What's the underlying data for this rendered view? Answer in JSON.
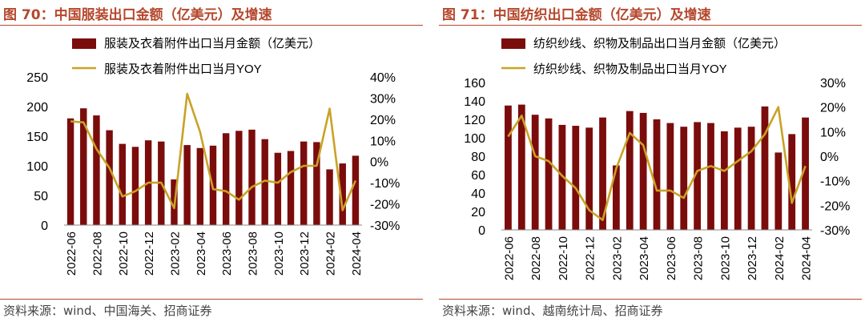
{
  "charts": [
    {
      "title": "图 70：中国服装出口金额（亿美元）及增速",
      "source": "资料来源：wind、中国海关、招商证券",
      "chart_data": {
        "type": "bar",
        "categories": [
          "2022-06",
          "2022-07",
          "2022-08",
          "2022-09",
          "2022-10",
          "2022-11",
          "2022-12",
          "2023-01",
          "2023-02",
          "2023-03",
          "2023-04",
          "2023-05",
          "2023-06",
          "2023-07",
          "2023-08",
          "2023-09",
          "2023-10",
          "2023-11",
          "2023-12",
          "2024-01",
          "2024-02",
          "2024-03",
          "2024-04"
        ],
        "tick_labels": [
          "2022-06",
          "2022-08",
          "2022-10",
          "2022-12",
          "2023-02",
          "2023-04",
          "2023-06",
          "2023-08",
          "2023-10",
          "2023-12",
          "2024-02",
          "2024-04"
        ],
        "series": [
          {
            "name": "服装及衣着附件出口当月金额（亿美元）",
            "type": "bar",
            "axis": "left",
            "color": "#7b0c0c",
            "values": [
              180,
              197,
              185,
              160,
              137,
              132,
              143,
              141,
              77,
              135,
              130,
              134,
              155,
              159,
              161,
              145,
              122,
              125,
              141,
              140,
              94,
              104,
              117
            ]
          },
          {
            "name": "服装及衣着附件出口当月YOY",
            "type": "line",
            "axis": "right",
            "color": "#c9a227",
            "values": [
              19,
              18.5,
              6,
              -3,
              -16.5,
              -14,
              -10,
              -10,
              -22,
              32,
              14,
              -13,
              -14,
              -18,
              -12,
              -9,
              -10,
              -5,
              -2,
              -2,
              25,
              -23,
              -9
            ]
          }
        ],
        "yleft": {
          "min": 0,
          "max": 250,
          "step": 50,
          "ticks": [
            "0",
            "50",
            "100",
            "150",
            "200",
            "250"
          ]
        },
        "yright": {
          "min": -30,
          "max": 40,
          "step": 10,
          "ticks": [
            "-30%",
            "-20%",
            "-10%",
            "0%",
            "10%",
            "20%",
            "30%",
            "40%"
          ]
        },
        "legend": "top"
      }
    },
    {
      "title": "图 71：中国纺织出口金额（亿美元）及增速",
      "source": "资料来源：wind、越南统计局、招商证券",
      "chart_data": {
        "type": "bar",
        "categories": [
          "2022-06",
          "2022-07",
          "2022-08",
          "2022-09",
          "2022-10",
          "2022-11",
          "2022-12",
          "2023-01",
          "2023-02",
          "2023-03",
          "2023-04",
          "2023-05",
          "2023-06",
          "2023-07",
          "2023-08",
          "2023-09",
          "2023-10",
          "2023-11",
          "2023-12",
          "2024-01",
          "2024-02",
          "2024-03",
          "2024-04"
        ],
        "tick_labels": [
          "2022-06",
          "2022-08",
          "2022-10",
          "2022-12",
          "2023-02",
          "2023-04",
          "2023-06",
          "2023-08",
          "2023-10",
          "2023-12",
          "2024-02",
          "2024-04"
        ],
        "series": [
          {
            "name": "纺织纱线、织物及制品出口当月金额（亿美元）",
            "type": "bar",
            "axis": "left",
            "color": "#7b0c0c",
            "values": [
              135,
              136,
              125,
              121,
              114,
              113,
              111,
              122,
              70,
              129,
              127,
              120,
              116,
              112,
              117,
              116,
              107,
              111,
              112,
              134,
              84,
              104,
              122
            ]
          },
          {
            "name": "纺织纱线、织物及制品出口当月YOY",
            "type": "line",
            "axis": "right",
            "color": "#c9a227",
            "values": [
              8,
              16.5,
              0,
              -2,
              -8,
              -13,
              -22,
              -26,
              -5,
              9.5,
              4.5,
              -14,
              -14,
              -17,
              -6,
              -4,
              -6,
              -2,
              2,
              9,
              20,
              -19,
              -4
            ]
          }
        ],
        "yleft": {
          "min": 0,
          "max": 160,
          "step": 20,
          "ticks": [
            "0",
            "20",
            "40",
            "60",
            "80",
            "100",
            "120",
            "140",
            "160"
          ]
        },
        "yright": {
          "min": -30,
          "max": 30,
          "step": 10,
          "ticks": [
            "-30%",
            "-20%",
            "-10%",
            "0%",
            "10%",
            "20%",
            "30%"
          ]
        },
        "legend": "top"
      }
    }
  ]
}
